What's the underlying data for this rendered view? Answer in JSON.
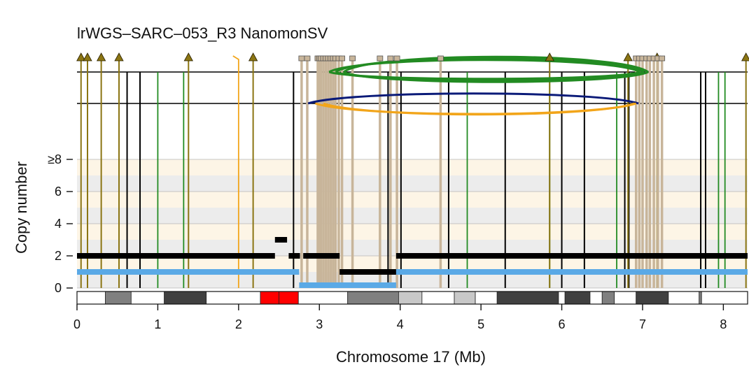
{
  "chart_data": {
    "type": "line",
    "title": "lrWGS–SARC–053_R3 NanomonSV",
    "xlabel": "Chromosome 17 (Mb)",
    "ylabel": "Copy number",
    "xlim": [
      0,
      8.3
    ],
    "ylim": [
      0,
      8
    ],
    "x_ticks": [
      0,
      1,
      2,
      3,
      4,
      5,
      6,
      7,
      8
    ],
    "y_ticks": [
      {
        "value": 0,
        "label": "0"
      },
      {
        "value": 2,
        "label": "2"
      },
      {
        "value": 4,
        "label": "4"
      },
      {
        "value": 6,
        "label": "6"
      },
      {
        "value": 8,
        "label": "≥8"
      }
    ],
    "colors": {
      "total_cn": "#000000",
      "minor_cn": "#5aa9e6",
      "deletion": "#000000",
      "duplication": "#228b22",
      "inversion": "#0a1a78",
      "translocation": "#8b7513",
      "tan": "#c8b59a",
      "orange": "#f2a51a",
      "band_alt1": "#fdf5e6",
      "band_alt2": "#ececec"
    },
    "total_cn_segments": [
      {
        "x0": 0.0,
        "x1": 2.45,
        "cn": 2
      },
      {
        "x0": 2.45,
        "x1": 2.6,
        "cn": 3
      },
      {
        "x0": 2.62,
        "x1": 2.76,
        "cn": 2
      },
      {
        "x0": 2.8,
        "x1": 3.25,
        "cn": 2
      },
      {
        "x0": 3.25,
        "x1": 3.95,
        "cn": 1
      },
      {
        "x0": 3.95,
        "x1": 8.3,
        "cn": 2
      }
    ],
    "minor_cn_segments": [
      {
        "x0": 0.0,
        "x1": 2.75,
        "cn": 1
      },
      {
        "x0": 2.75,
        "x1": 3.95,
        "cn": 0
      },
      {
        "x0": 3.95,
        "x1": 8.3,
        "cn": 1
      }
    ],
    "breakpoints": {
      "black": [
        0.62,
        0.78,
        2.68,
        3.85,
        4.01,
        4.6,
        5.3,
        6.0,
        6.28,
        6.78,
        6.83,
        7.72,
        7.78
      ],
      "green": [
        1.0,
        1.32,
        4.83,
        5.85,
        6.68,
        7.94,
        8.02
      ],
      "translocation": [
        0.05,
        0.13,
        0.3,
        0.52,
        1.38,
        2.18,
        5.85,
        6.82,
        7.18,
        8.28
      ],
      "tan": [
        2.78,
        2.85,
        2.98,
        3.0,
        3.02,
        3.05,
        3.08,
        3.11,
        3.14,
        3.17,
        3.2,
        3.24,
        3.28,
        3.41,
        3.75,
        3.88,
        3.96,
        4.5,
        6.92,
        6.96,
        7.0,
        7.05,
        7.09,
        7.14,
        7.19,
        7.24
      ],
      "inversion": [
        2.85
      ],
      "orange": [
        2.0
      ]
    },
    "arcs": [
      {
        "x0": 3.12,
        "x1": 6.97,
        "color": "green",
        "row": "top"
      },
      {
        "x0": 3.2,
        "x1": 7.02,
        "color": "green",
        "row": "top"
      },
      {
        "x0": 3.3,
        "x1": 7.07,
        "color": "green",
        "row": "top"
      },
      {
        "x0": 2.86,
        "x1": 6.95,
        "color": "inversion",
        "row": "bottom"
      },
      {
        "x0": 2.95,
        "x1": 6.92,
        "color": "orange",
        "row": "bottom"
      },
      {
        "x0": 3.05,
        "x1": 6.9,
        "color": "orange",
        "row": "bottom"
      }
    ],
    "cytobands": [
      {
        "start": 0.0,
        "end": 0.35,
        "stain": "gneg"
      },
      {
        "start": 0.35,
        "end": 0.67,
        "stain": "gpos50"
      },
      {
        "start": 0.67,
        "end": 1.08,
        "stain": "gneg"
      },
      {
        "start": 1.08,
        "end": 1.6,
        "stain": "gpos75"
      },
      {
        "start": 1.6,
        "end": 2.27,
        "stain": "gneg"
      },
      {
        "start": 2.27,
        "end": 2.5,
        "stain": "acen"
      },
      {
        "start": 2.5,
        "end": 2.74,
        "stain": "acen"
      },
      {
        "start": 2.74,
        "end": 3.35,
        "stain": "gneg"
      },
      {
        "start": 3.35,
        "end": 3.98,
        "stain": "gpos50"
      },
      {
        "start": 3.98,
        "end": 4.27,
        "stain": "gpos25"
      },
      {
        "start": 4.27,
        "end": 4.67,
        "stain": "gneg"
      },
      {
        "start": 4.67,
        "end": 4.93,
        "stain": "gpos25"
      },
      {
        "start": 4.93,
        "end": 5.2,
        "stain": "gneg"
      },
      {
        "start": 5.2,
        "end": 5.96,
        "stain": "gpos75"
      },
      {
        "start": 5.96,
        "end": 6.04,
        "stain": "gneg"
      },
      {
        "start": 6.04,
        "end": 6.35,
        "stain": "gpos75"
      },
      {
        "start": 6.35,
        "end": 6.5,
        "stain": "gneg"
      },
      {
        "start": 6.5,
        "end": 6.65,
        "stain": "gpos50"
      },
      {
        "start": 6.65,
        "end": 6.92,
        "stain": "gneg"
      },
      {
        "start": 6.92,
        "end": 7.32,
        "stain": "gpos75"
      },
      {
        "start": 7.32,
        "end": 7.7,
        "stain": "gneg"
      },
      {
        "start": 7.7,
        "end": 7.73,
        "stain": "gpos50"
      },
      {
        "start": 7.73,
        "end": 8.3,
        "stain": "gneg"
      }
    ],
    "grid": true
  }
}
